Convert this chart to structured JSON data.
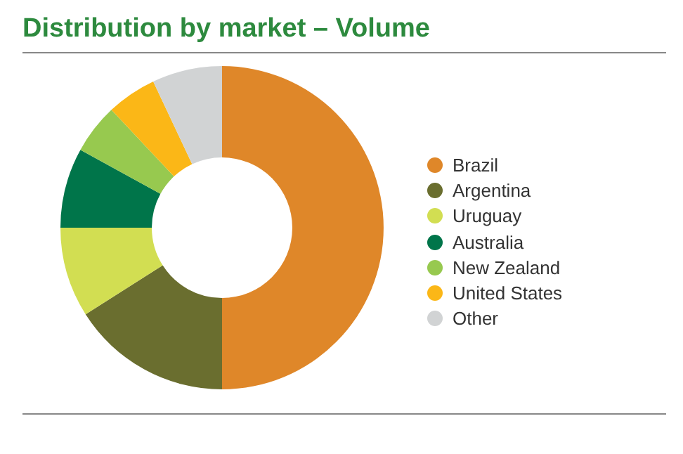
{
  "chart_data": {
    "type": "donut",
    "title": "Distribution by market – Volume",
    "categories": [
      "Brazil",
      "Argentina",
      "Uruguay",
      "Australia",
      "New Zealand",
      "United States",
      "Other"
    ],
    "values": [
      50,
      16,
      9,
      8,
      5,
      5,
      7
    ],
    "colors": [
      "#df8729",
      "#6a6e2f",
      "#d2de52",
      "#00754a",
      "#97c94f",
      "#fbb717",
      "#d1d3d4"
    ],
    "legend": "right"
  }
}
